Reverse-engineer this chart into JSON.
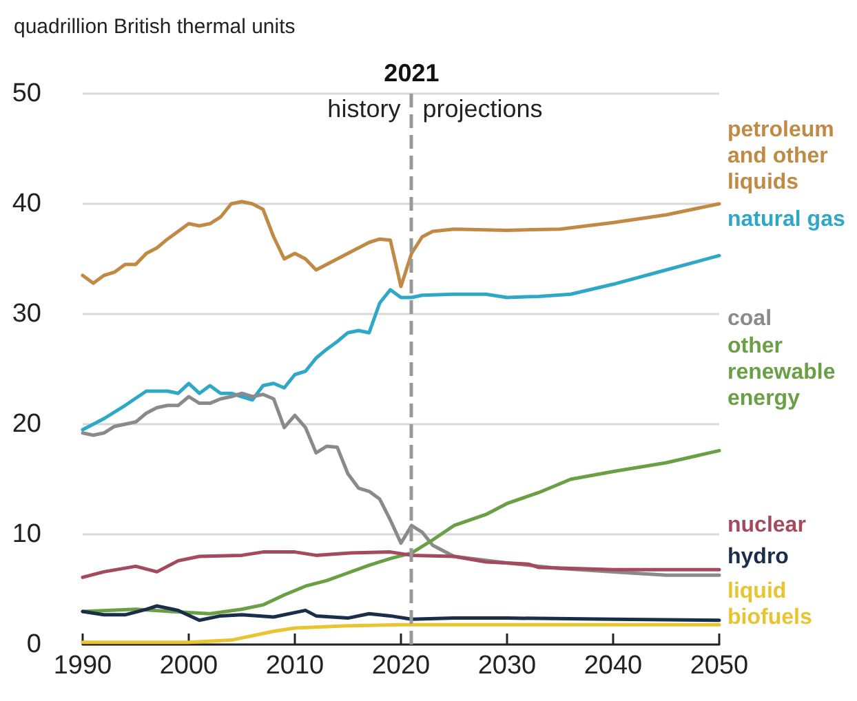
{
  "chart_data": {
    "type": "line",
    "ylabel": "quadrillion British thermal units",
    "xlim": [
      1990,
      2050
    ],
    "xticks": [
      1990,
      2000,
      2010,
      2020,
      2030,
      2040,
      2050
    ],
    "ylim": [
      0,
      50
    ],
    "yticks": [
      0,
      10,
      20,
      30,
      40,
      50
    ],
    "grid": "y",
    "legend": false,
    "marker": "none",
    "line_style": "solid",
    "ref_lines": [
      {
        "axis": "x",
        "value": 2021,
        "label": "2021",
        "color": "#999999",
        "line_style": "dashed"
      }
    ],
    "annotations": [
      "history",
      "projections"
    ],
    "series": [
      {
        "name": "petroleum and other liquids",
        "color": "#c08a45",
        "x": [
          1990,
          1991,
          1992,
          1993,
          1994,
          1995,
          1996,
          1997,
          1998,
          1999,
          2000,
          2001,
          2002,
          2003,
          2004,
          2005,
          2006,
          2007,
          2008,
          2009,
          2010,
          2011,
          2012,
          2013,
          2014,
          2015,
          2016,
          2017,
          2018,
          2019,
          2020,
          2021,
          2022,
          2023,
          2025,
          2030,
          2035,
          2040,
          2045,
          2050
        ],
        "values": [
          33.5,
          32.8,
          33.5,
          33.8,
          34.5,
          34.5,
          35.5,
          36,
          36.8,
          37.5,
          38.2,
          38,
          38.2,
          38.8,
          40,
          40.2,
          40,
          39.5,
          37,
          35,
          35.5,
          35,
          34,
          34.5,
          35,
          35.5,
          36,
          36.5,
          36.8,
          36.7,
          32.5,
          35.5,
          37,
          37.5,
          37.7,
          37.6,
          37.7,
          38.3,
          39,
          40
        ]
      },
      {
        "name": "natural gas",
        "color": "#2fa8c8",
        "x": [
          1990,
          1992,
          1994,
          1996,
          1998,
          1999,
          2000,
          2001,
          2002,
          2003,
          2004,
          2005,
          2006,
          2007,
          2008,
          2009,
          2010,
          2011,
          2012,
          2013,
          2014,
          2015,
          2016,
          2017,
          2018,
          2019,
          2020,
          2021,
          2022,
          2025,
          2028,
          2030,
          2033,
          2036,
          2040,
          2045,
          2050
        ],
        "values": [
          19.5,
          20.5,
          21.7,
          23,
          23,
          22.8,
          23.7,
          22.8,
          23.5,
          22.8,
          22.8,
          22.5,
          22.2,
          23.5,
          23.7,
          23.3,
          24.5,
          24.8,
          26,
          26.8,
          27.5,
          28.3,
          28.5,
          28.3,
          31,
          32.2,
          31.5,
          31.5,
          31.7,
          31.8,
          31.8,
          31.5,
          31.6,
          31.8,
          32.7,
          34,
          35.3
        ]
      },
      {
        "name": "coal",
        "color": "#8a8a8a",
        "x": [
          1990,
          1991,
          1992,
          1993,
          1994,
          1995,
          1996,
          1997,
          1998,
          1999,
          2000,
          2001,
          2002,
          2003,
          2004,
          2005,
          2006,
          2007,
          2008,
          2009,
          2010,
          2011,
          2012,
          2013,
          2014,
          2015,
          2016,
          2017,
          2018,
          2019,
          2020,
          2021,
          2022,
          2023,
          2025,
          2030,
          2035,
          2040,
          2045,
          2050
        ],
        "values": [
          19.2,
          19,
          19.2,
          19.8,
          20,
          20.2,
          21,
          21.5,
          21.7,
          21.7,
          22.5,
          21.9,
          21.9,
          22.3,
          22.5,
          22.8,
          22.5,
          22.7,
          22.3,
          19.7,
          20.8,
          19.7,
          17.4,
          18,
          17.9,
          15.5,
          14.2,
          13.9,
          13.2,
          11.3,
          9.2,
          10.8,
          10.2,
          9,
          8,
          7.4,
          6.9,
          6.6,
          6.3,
          6.3
        ]
      },
      {
        "name": "other renewable energy",
        "color": "#6a9f45",
        "x": [
          1990,
          1995,
          2000,
          2002,
          2005,
          2007,
          2009,
          2011,
          2013,
          2015,
          2017,
          2019,
          2021,
          2023,
          2025,
          2028,
          2030,
          2033,
          2036,
          2040,
          2045,
          2050
        ],
        "values": [
          3,
          3.2,
          2.9,
          2.8,
          3.2,
          3.6,
          4.5,
          5.3,
          5.8,
          6.5,
          7.2,
          7.8,
          8.3,
          9.5,
          10.8,
          11.8,
          12.8,
          13.8,
          15,
          15.7,
          16.5,
          17.6
        ]
      },
      {
        "name": "nuclear",
        "color": "#a34a5e",
        "x": [
          1990,
          1992,
          1995,
          1997,
          1999,
          2001,
          2005,
          2007,
          2010,
          2012,
          2015,
          2019,
          2021,
          2025,
          2028,
          2032,
          2033,
          2040,
          2050
        ],
        "values": [
          6.1,
          6.6,
          7.1,
          6.6,
          7.6,
          8,
          8.1,
          8.4,
          8.4,
          8.1,
          8.3,
          8.4,
          8.1,
          8,
          7.5,
          7.3,
          7,
          6.8,
          6.8
        ]
      },
      {
        "name": "hydro",
        "color": "#1a2e4a",
        "x": [
          1990,
          1992,
          1994,
          1996,
          1997,
          1999,
          2001,
          2003,
          2005,
          2008,
          2011,
          2012,
          2015,
          2017,
          2019,
          2021,
          2025,
          2030,
          2040,
          2050
        ],
        "values": [
          3,
          2.7,
          2.7,
          3.2,
          3.5,
          3.1,
          2.2,
          2.6,
          2.7,
          2.5,
          3.1,
          2.6,
          2.4,
          2.8,
          2.6,
          2.3,
          2.4,
          2.4,
          2.3,
          2.2
        ]
      },
      {
        "name": "liquid biofuels",
        "color": "#e8c530",
        "x": [
          1990,
          2000,
          2004,
          2006,
          2008,
          2010,
          2015,
          2020,
          2021,
          2030,
          2040,
          2050
        ],
        "values": [
          0.2,
          0.2,
          0.4,
          0.8,
          1.2,
          1.5,
          1.7,
          1.8,
          1.8,
          1.8,
          1.8,
          1.8
        ]
      }
    ]
  }
}
